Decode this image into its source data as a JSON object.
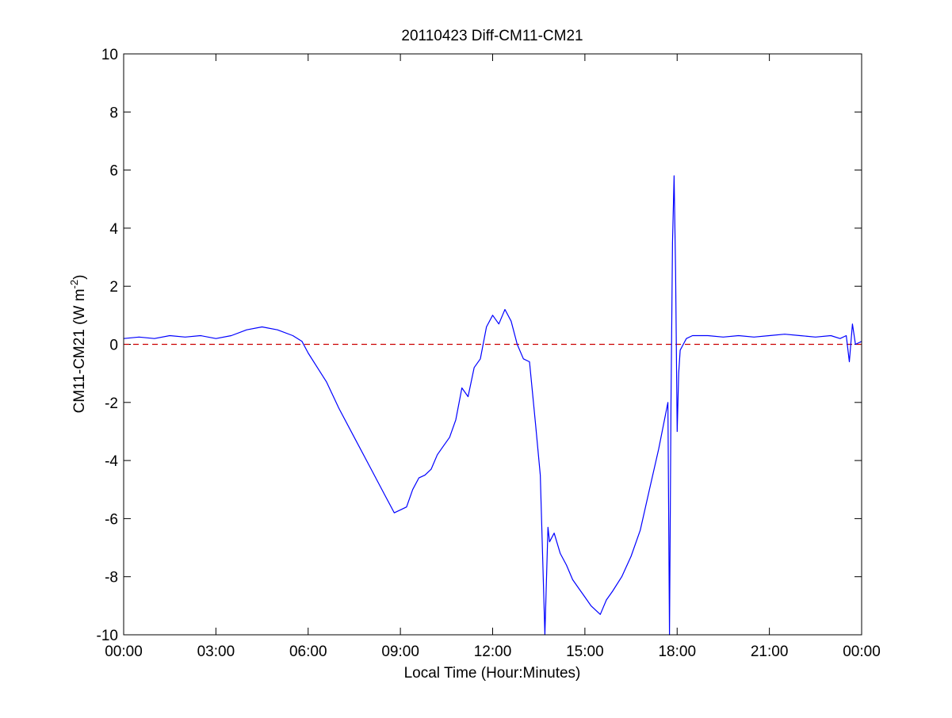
{
  "chart_data": {
    "type": "line",
    "title": "20110423 Diff-CM11-CM21",
    "xlabel": "Local Time (Hour:Minutes)",
    "ylabel": {
      "prefix": "CM11-CM21 (W m",
      "sup": "-2",
      "suffix": ")"
    },
    "xlim": [
      0,
      24
    ],
    "ylim": [
      -10,
      10
    ],
    "x_ticks": [
      {
        "value": 0,
        "label": "00:00"
      },
      {
        "value": 3,
        "label": "03:00"
      },
      {
        "value": 6,
        "label": "06:00"
      },
      {
        "value": 9,
        "label": "09:00"
      },
      {
        "value": 12,
        "label": "12:00"
      },
      {
        "value": 15,
        "label": "15:00"
      },
      {
        "value": 18,
        "label": "18:00"
      },
      {
        "value": 21,
        "label": "21:00"
      },
      {
        "value": 24,
        "label": "00:00"
      }
    ],
    "y_ticks": [
      {
        "value": 10,
        "label": "10"
      },
      {
        "value": 8,
        "label": "8"
      },
      {
        "value": 6,
        "label": "6"
      },
      {
        "value": 4,
        "label": "4"
      },
      {
        "value": 2,
        "label": "2"
      },
      {
        "value": 0,
        "label": "0"
      },
      {
        "value": -2,
        "label": "-2"
      },
      {
        "value": -4,
        "label": "-4"
      },
      {
        "value": -6,
        "label": "-6"
      },
      {
        "value": -8,
        "label": "-8"
      },
      {
        "value": -10,
        "label": "-10"
      }
    ],
    "grid": false,
    "reference_line": {
      "y": 0,
      "color": "#cc0000",
      "style": "dashed"
    },
    "series": [
      {
        "color": "#0000ff",
        "x": [
          0,
          0.5,
          1,
          1.5,
          2,
          2.5,
          3,
          3.5,
          4,
          4.5,
          5,
          5.5,
          5.8,
          6,
          6.3,
          6.6,
          7,
          7.5,
          8,
          8.5,
          8.8,
          9,
          9.2,
          9.4,
          9.6,
          9.8,
          10,
          10.2,
          10.4,
          10.6,
          10.8,
          11,
          11.2,
          11.4,
          11.6,
          11.8,
          12,
          12.2,
          12.4,
          12.6,
          12.8,
          13,
          13.2,
          13.4,
          13.55,
          13.7,
          13.8,
          13.85,
          14,
          14.2,
          14.4,
          14.6,
          14.8,
          15,
          15.2,
          15.4,
          15.5,
          15.7,
          15.9,
          16.2,
          16.5,
          16.8,
          17.1,
          17.4,
          17.7,
          17.75,
          17.8,
          17.85,
          17.9,
          17.95,
          18,
          18.05,
          18.1,
          18.2,
          18.3,
          18.5,
          19,
          19.5,
          20,
          20.5,
          21,
          21.5,
          22,
          22.5,
          23,
          23.3,
          23.5,
          23.6,
          23.7,
          23.8,
          24
        ],
        "y": [
          0.2,
          0.25,
          0.2,
          0.3,
          0.25,
          0.3,
          0.2,
          0.3,
          0.5,
          0.6,
          0.5,
          0.3,
          0.1,
          -0.3,
          -0.8,
          -1.3,
          -2.2,
          -3.2,
          -4.2,
          -5.2,
          -5.8,
          -5.7,
          -5.6,
          -5.0,
          -4.6,
          -4.5,
          -4.3,
          -3.8,
          -3.5,
          -3.2,
          -2.6,
          -1.5,
          -1.8,
          -0.8,
          -0.5,
          0.6,
          1.0,
          0.7,
          1.2,
          0.8,
          0.0,
          -0.5,
          -0.6,
          -2.8,
          -4.5,
          -10.0,
          -6.3,
          -6.8,
          -6.5,
          -7.2,
          -7.6,
          -8.1,
          -8.4,
          -8.7,
          -9.0,
          -9.2,
          -9.3,
          -8.8,
          -8.5,
          -8.0,
          -7.3,
          -6.4,
          -5.0,
          -3.6,
          -2.0,
          -10.0,
          -2.0,
          3.5,
          5.8,
          2.5,
          -3.0,
          -1.0,
          -0.2,
          0.0,
          0.2,
          0.3,
          0.3,
          0.25,
          0.3,
          0.25,
          0.3,
          0.35,
          0.3,
          0.25,
          0.3,
          0.2,
          0.3,
          -0.6,
          0.7,
          0.0,
          0.1
        ]
      }
    ]
  }
}
